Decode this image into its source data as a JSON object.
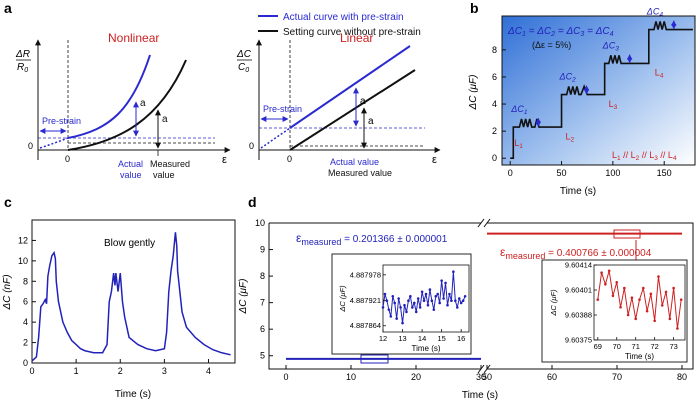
{
  "panels": {
    "a": {
      "letter": "a",
      "legend": [
        {
          "label": "Actual curve with pre-strain",
          "color": "#2a2ad0"
        },
        {
          "label": "Setting curve without pre-strain",
          "color": "#111111"
        }
      ],
      "nonlinear": {
        "title": "Nonlinear",
        "ylabel_top": "ΔR",
        "ylabel_bottom": "R",
        "ylabel_sub": "0",
        "xlabel": "ε",
        "zero_x": "0",
        "zero_y": "0",
        "prestrain": "Pre-strain",
        "a_label": "a",
        "actual_value": "Actual value",
        "actual_value_l1": "Actual",
        "actual_value_l2": "value",
        "measured_value_l1": "Measured",
        "measured_value_l2": "value"
      },
      "linear": {
        "title": "Linear",
        "ylabel_top": "ΔC",
        "ylabel_bottom": "C",
        "ylabel_sub": "0",
        "xlabel": "ε",
        "zero_x": "0",
        "zero_y": "0",
        "prestrain": "Pre-strain",
        "a_label": "a",
        "actual_value": "Actual value",
        "measured_value": "Measured value"
      },
      "title_color": "#cc2222"
    },
    "b": {
      "letter": "b",
      "equation": "ΔC1 = ΔC2 = ΔC3 = ΔC4",
      "eq_parts": [
        "ΔC",
        "1",
        " = ΔC",
        "2",
        " = ΔC",
        "3",
        " = ΔC",
        "4"
      ],
      "subtext": "(Δε = 5%)",
      "L_labels": [
        "L1",
        "L2",
        "L3",
        "L4"
      ],
      "L_main": "L",
      "L_relation": "L1 // L2 // L3 // L4",
      "rel_parts": [
        "L",
        "1",
        " // L",
        "2",
        " // L",
        "3",
        " // L",
        "4"
      ],
      "dC_labels": [
        "ΔC1",
        "ΔC2",
        "ΔC3",
        "ΔC4"
      ],
      "dC_main": "ΔC",
      "xlabel": "Time (s)",
      "ylabel": "ΔC (μF)"
    },
    "c": {
      "letter": "c",
      "annotation": "Blow gently",
      "xlabel": "Time (s)",
      "ylabel": "ΔC (nF)"
    },
    "d": {
      "letter": "d",
      "eps1_main": "ε",
      "eps1_sub": "measured",
      "eps1_value": " = 0.201366 ± 0.000001",
      "eps2_main": "ε",
      "eps2_sub": "measured",
      "eps2_value": " = 0.400766 ± 0.000004",
      "xlabel": "Time (s)",
      "ylabel": "ΔC (μF)",
      "inset1_ylabel": "ΔC (μF)",
      "inset1_xlabel": "Time (s)",
      "inset2_ylabel": "ΔC (μF)",
      "inset2_xlabel": "Time (s)"
    }
  },
  "chart_data": [
    {
      "type": "line",
      "panel": "b",
      "xlabel": "Time (s)",
      "ylabel": "ΔC (μF)",
      "xlim": [
        -8,
        180
      ],
      "ylim": [
        -0.5,
        10.5
      ],
      "xticks": [
        0,
        50,
        100,
        150
      ],
      "yticks": [
        0,
        2,
        4,
        6,
        8
      ],
      "color": "#111111",
      "x": [
        0,
        3,
        3,
        9,
        11,
        13,
        15,
        17,
        19,
        21,
        24,
        26,
        28,
        30,
        35,
        40,
        43,
        46,
        50,
        50,
        55,
        57,
        59,
        61,
        63,
        65,
        67,
        69,
        72,
        75,
        80,
        85,
        88,
        90,
        92,
        92,
        96,
        98,
        100,
        102,
        104,
        106,
        108,
        112,
        120,
        125,
        131,
        133,
        135,
        135,
        140,
        142,
        144,
        146,
        148,
        150,
        152,
        154,
        160,
        170,
        178
      ],
      "y": [
        0,
        0,
        2.3,
        2.3,
        2.9,
        2.3,
        2.9,
        2.3,
        2.9,
        2.3,
        2.3,
        2.9,
        2.3,
        2.3,
        2.3,
        2.3,
        2.3,
        2.3,
        2.3,
        4.7,
        4.7,
        5.3,
        4.7,
        5.3,
        4.7,
        5.3,
        4.7,
        4.7,
        5.3,
        4.7,
        4.7,
        4.7,
        4.7,
        4.7,
        4.7,
        7.0,
        7.0,
        7.6,
        7.0,
        7.6,
        7.0,
        7.6,
        7.0,
        7.0,
        7.0,
        7.0,
        7.0,
        7.0,
        7.0,
        9.5,
        9.5,
        10.1,
        9.5,
        10.1,
        9.5,
        10.1,
        9.5,
        9.5,
        9.5,
        9.5,
        9.5
      ]
    },
    {
      "type": "line",
      "panel": "c",
      "xlabel": "Time (s)",
      "ylabel": "ΔC (nF)",
      "xlim": [
        0,
        4.6
      ],
      "ylim": [
        0,
        14
      ],
      "xticks": [
        0,
        1,
        2,
        3,
        4
      ],
      "yticks": [
        0,
        2,
        4,
        6,
        8,
        10,
        12
      ],
      "color": "#2222bb",
      "x": [
        0,
        0.05,
        0.1,
        0.15,
        0.2,
        0.25,
        0.3,
        0.33,
        0.36,
        0.4,
        0.45,
        0.5,
        0.53,
        0.55,
        0.6,
        0.7,
        0.8,
        0.9,
        1.0,
        1.1,
        1.2,
        1.4,
        1.6,
        1.7,
        1.75,
        1.8,
        1.85,
        1.88,
        1.9,
        1.95,
        2.0,
        2.05,
        2.1,
        2.2,
        2.4,
        2.6,
        2.8,
        3.0,
        3.05,
        3.1,
        3.15,
        3.2,
        3.25,
        3.28,
        3.3,
        3.35,
        3.4,
        3.5,
        3.7,
        3.9,
        4.1,
        4.3,
        4.5
      ],
      "y": [
        0.2,
        0.4,
        0.6,
        2.5,
        5.5,
        5.8,
        6.2,
        5.8,
        8.5,
        9.5,
        10.5,
        10.8,
        10.2,
        8.0,
        6.0,
        4.0,
        3.0,
        2.2,
        1.8,
        1.4,
        1.2,
        1.0,
        1.0,
        1.8,
        6.0,
        7.0,
        8.8,
        7.6,
        8.8,
        7.0,
        8.8,
        6.0,
        4.5,
        2.5,
        1.8,
        1.4,
        1.2,
        1.4,
        3.0,
        7.0,
        9.0,
        10.5,
        12.8,
        11.5,
        9.0,
        7.0,
        5.0,
        3.5,
        2.5,
        1.8,
        1.3,
        1.0,
        0.8
      ]
    },
    {
      "type": "line",
      "panel": "d",
      "xlabel": "Time (s)",
      "ylabel": "ΔC (μF)",
      "axis_break": [
        30,
        50
      ],
      "ylim": [
        4.5,
        10
      ],
      "xticks": [
        0,
        10,
        20,
        30,
        50,
        60,
        70,
        80
      ],
      "yticks": [
        5,
        6,
        7,
        8,
        9,
        10
      ],
      "series": [
        {
          "color": "#2222bb",
          "x": [
            0,
            30
          ],
          "y": [
            4.88,
            4.88
          ]
        },
        {
          "color": "#cc2222",
          "x": [
            50,
            80
          ],
          "y": [
            9.6,
            9.6
          ]
        }
      ]
    },
    {
      "type": "line",
      "panel": "d-inset-1",
      "xlabel": "Time (s)",
      "ylabel": "ΔC (μF)",
      "color": "#2222bb",
      "xlim": [
        12,
        16.4
      ],
      "ylim": [
        4.88785,
        4.888
      ],
      "xticks": [
        12,
        13,
        14,
        15,
        16
      ],
      "yticks": [
        4.887864,
        4.887921,
        4.887978
      ],
      "x": [
        12.0,
        12.1,
        12.2,
        12.3,
        12.4,
        12.5,
        12.6,
        12.7,
        12.8,
        12.9,
        13.0,
        13.1,
        13.2,
        13.3,
        13.4,
        13.5,
        13.6,
        13.7,
        13.8,
        13.9,
        14.0,
        14.1,
        14.2,
        14.3,
        14.4,
        14.5,
        14.6,
        14.7,
        14.8,
        14.9,
        15.0,
        15.1,
        15.2,
        15.3,
        15.4,
        15.5,
        15.6,
        15.7,
        15.8,
        15.9,
        16.0,
        16.1,
        16.2
      ],
      "y": [
        4.887905,
        4.887935,
        4.88792,
        4.8879,
        4.887885,
        4.88793,
        4.887915,
        4.88788,
        4.887925,
        4.887905,
        4.88787,
        4.88791,
        4.887895,
        4.88792,
        4.88793,
        4.887905,
        4.887915,
        4.887895,
        4.887925,
        4.887905,
        4.88794,
        4.88792,
        4.887935,
        4.88791,
        4.887945,
        4.88792,
        4.8879,
        4.88793,
        4.887935,
        4.887915,
        4.887965,
        4.887925,
        4.88796,
        4.88791,
        4.887935,
        4.88792,
        4.887985,
        4.88792,
        4.887905,
        4.887925,
        4.887915,
        4.88792,
        4.88793
      ]
    },
    {
      "type": "line",
      "panel": "d-inset-2",
      "xlabel": "Time (s)",
      "ylabel": "ΔC (μF)",
      "color": "#cc2222",
      "xlim": [
        68.8,
        73.6
      ],
      "ylim": [
        9.60375,
        9.60414
      ],
      "xticks": [
        69,
        70,
        71,
        72,
        73
      ],
      "yticks": [
        9.60375,
        9.60388,
        9.60401,
        9.60414
      ],
      "x": [
        69.0,
        69.2,
        69.4,
        69.6,
        69.8,
        70.0,
        70.2,
        70.4,
        70.6,
        70.8,
        71.0,
        71.2,
        71.4,
        71.6,
        71.8,
        72.0,
        72.2,
        72.4,
        72.6,
        72.8,
        73.0,
        73.2,
        73.4
      ],
      "y": [
        9.60396,
        9.6041,
        9.60404,
        9.60411,
        9.60398,
        9.60405,
        9.60392,
        9.60402,
        9.60388,
        9.60397,
        9.60386,
        9.60396,
        9.60402,
        9.6039,
        9.60399,
        9.60385,
        9.60408,
        9.60393,
        9.604,
        9.60386,
        9.60402,
        9.60381,
        9.60396
      ]
    }
  ]
}
